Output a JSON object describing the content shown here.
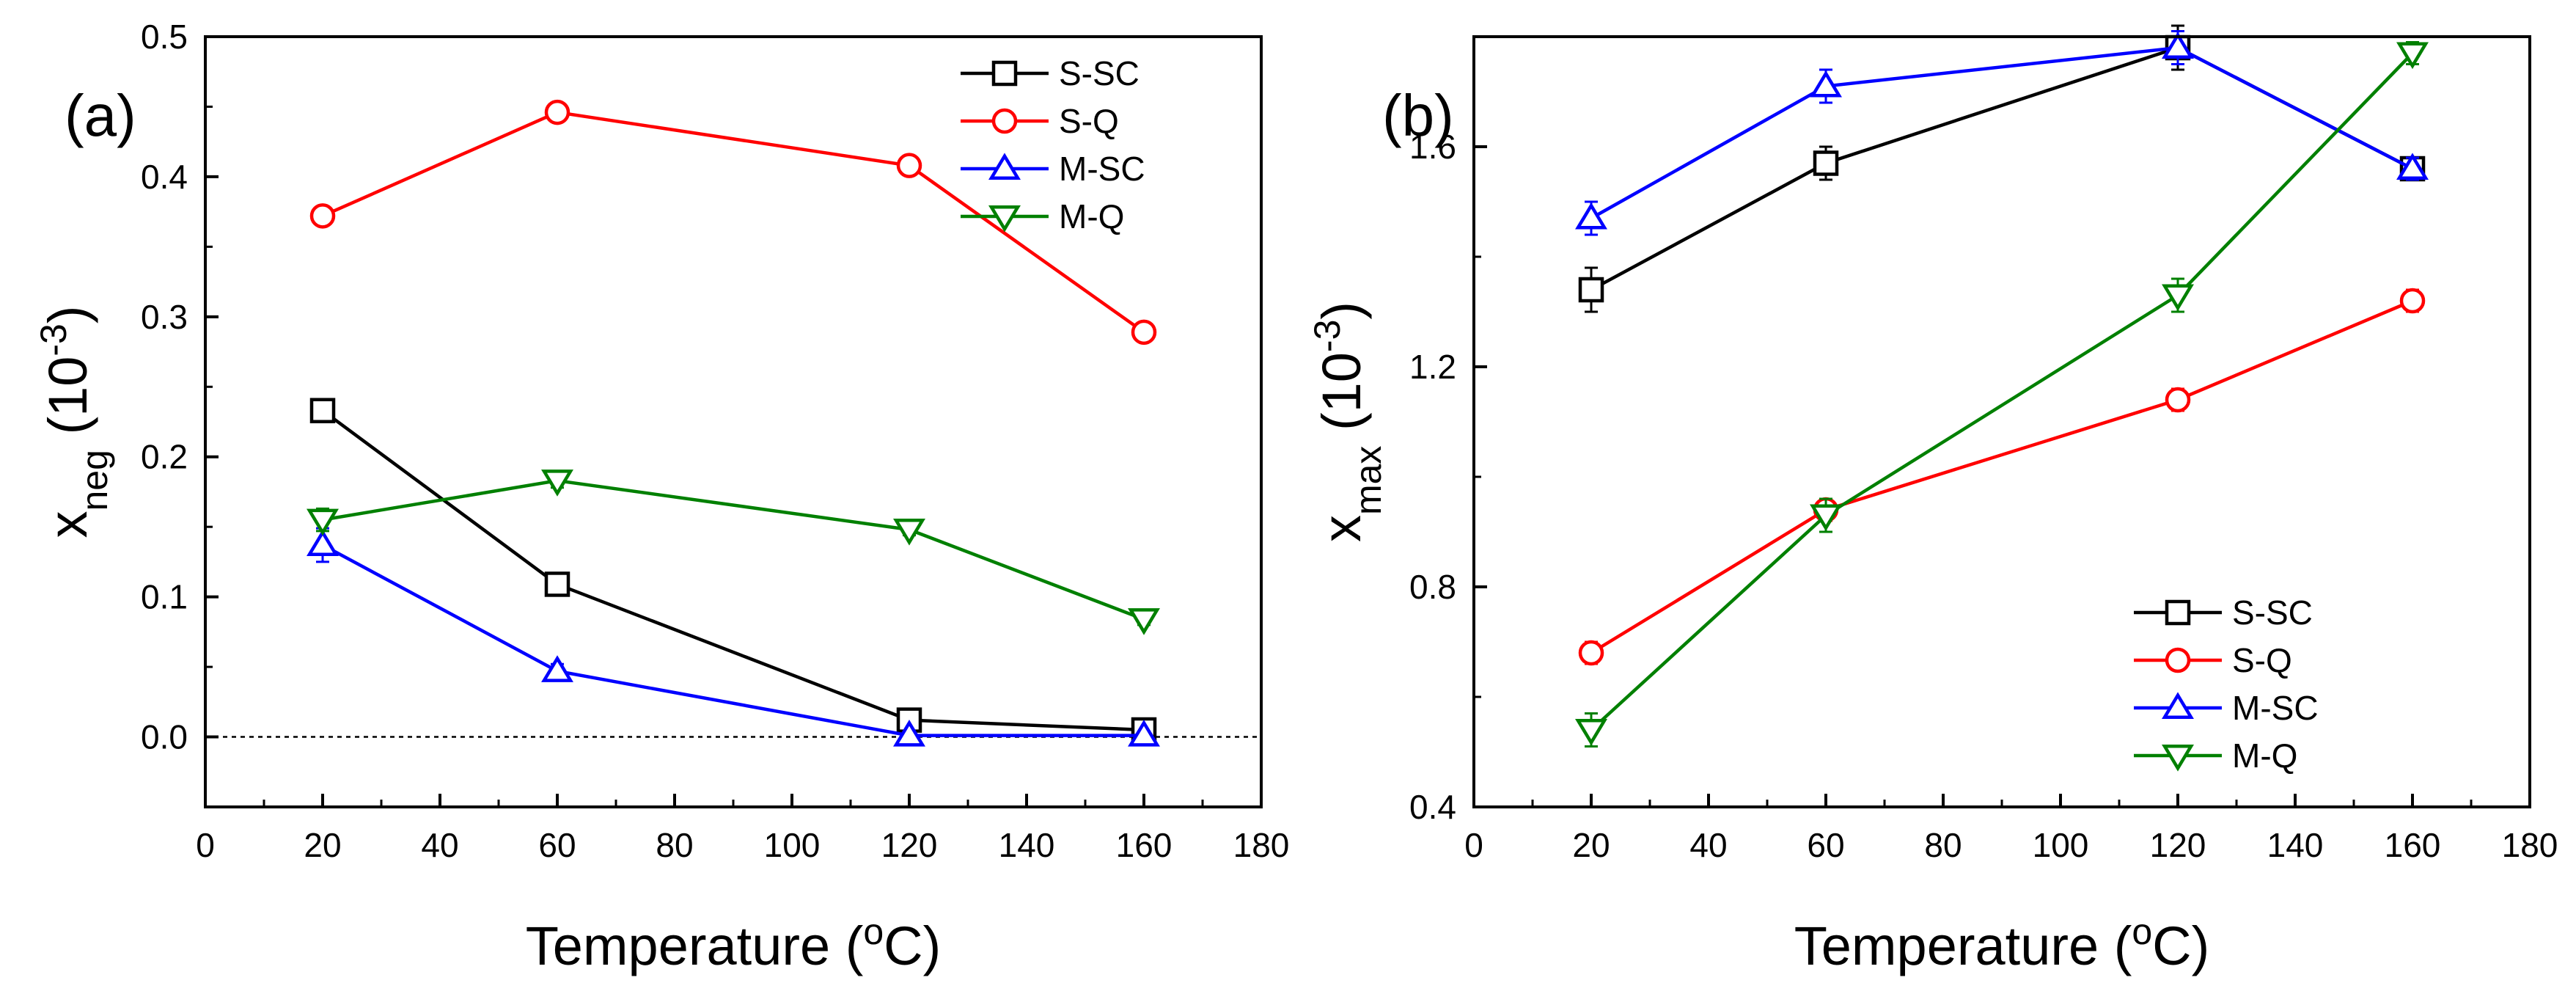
{
  "chart_data": [
    {
      "type": "line",
      "panel_label": "(a)",
      "xlabel": "Temperature (°C)",
      "ylabel": "x_neg (10^-3)",
      "xlim": [
        0,
        180
      ],
      "ylim": [
        -0.05,
        0.5
      ],
      "xticks": [
        0,
        20,
        40,
        60,
        80,
        100,
        120,
        140,
        160,
        180
      ],
      "yticks": [
        0.0,
        0.1,
        0.2,
        0.3,
        0.4,
        0.5
      ],
      "ytick_labels": [
        "0.0",
        "0.1",
        "0.2",
        "0.3",
        "0.4",
        "0.5"
      ],
      "reference_line": {
        "y": 0.0,
        "style": "dotted"
      },
      "legend_position": "top-right",
      "x": [
        20,
        60,
        120,
        160
      ],
      "series": [
        {
          "name": "S-SC",
          "color": "#000000",
          "marker": "square",
          "values": [
            0.233,
            0.109,
            0.012,
            0.005
          ],
          "errors": [
            0.008,
            0.004,
            0.003,
            0.003
          ]
        },
        {
          "name": "S-Q",
          "color": "#ff0000",
          "marker": "circle",
          "values": [
            0.372,
            0.446,
            0.408,
            0.289
          ],
          "errors": [
            0.004,
            0.004,
            0.004,
            0.004
          ]
        },
        {
          "name": "M-SC",
          "color": "#0000ff",
          "marker": "triangle-up",
          "values": [
            0.137,
            0.047,
            0.001,
            0.001
          ],
          "errors": [
            0.012,
            0.005,
            0.002,
            0.002
          ]
        },
        {
          "name": "M-Q",
          "color": "#008000",
          "marker": "triangle-down",
          "values": [
            0.155,
            0.183,
            0.148,
            0.084
          ],
          "errors": [
            0.008,
            0.005,
            0.004,
            0.004
          ]
        }
      ]
    },
    {
      "type": "line",
      "panel_label": "(b)",
      "xlabel": "Temperature (°C)",
      "ylabel": "x_max (10^-3)",
      "xlim": [
        0,
        180
      ],
      "ylim": [
        0.4,
        1.8
      ],
      "xticks": [
        0,
        20,
        40,
        60,
        80,
        100,
        120,
        140,
        160,
        180
      ],
      "yticks": [
        0.4,
        0.8,
        1.2,
        1.6
      ],
      "ytick_labels": [
        "0.4",
        "0.8",
        "1.2",
        "1.6"
      ],
      "legend_position": "bottom-right",
      "x": [
        20,
        60,
        120,
        160
      ],
      "series": [
        {
          "name": "S-SC",
          "color": "#000000",
          "marker": "square",
          "values": [
            1.34,
            1.57,
            1.78,
            1.56
          ],
          "errors": [
            0.04,
            0.03,
            0.04,
            0.02
          ]
        },
        {
          "name": "S-Q",
          "color": "#ff0000",
          "marker": "circle",
          "values": [
            0.68,
            0.94,
            1.14,
            1.32
          ],
          "errors": [
            0.02,
            0.02,
            0.02,
            0.02
          ]
        },
        {
          "name": "M-SC",
          "color": "#0000ff",
          "marker": "triangle-up",
          "values": [
            1.47,
            1.71,
            1.78,
            1.56
          ],
          "errors": [
            0.03,
            0.03,
            0.03,
            0.02
          ]
        },
        {
          "name": "M-Q",
          "color": "#008000",
          "marker": "triangle-down",
          "values": [
            0.54,
            0.93,
            1.33,
            1.77
          ],
          "errors": [
            0.03,
            0.03,
            0.03,
            0.02
          ]
        }
      ]
    }
  ]
}
